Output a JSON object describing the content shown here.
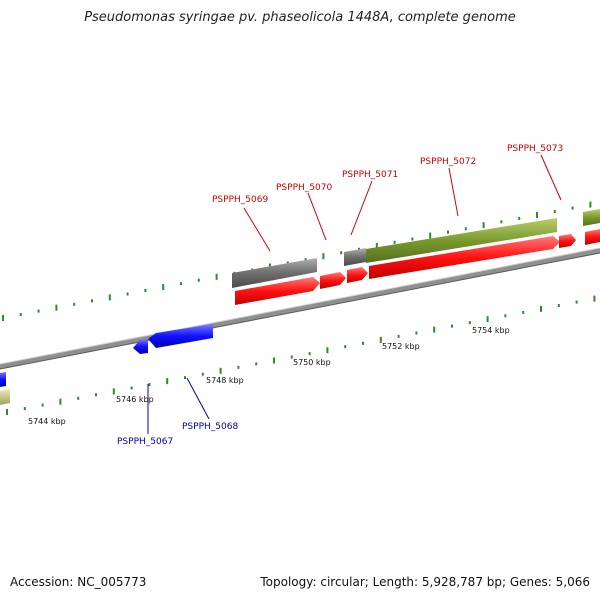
{
  "title": "Pseudomonas syringae pv. phaseolicola 1448A, complete genome",
  "footer": {
    "accession": "Accession: NC_005773",
    "topology": "Topology: circular; Length: 5,928,787 bp; Genes: 5,066"
  },
  "colors": {
    "backbone": "#8a8a8a",
    "forward_cds": "#ff1a1a",
    "reverse_cds": "#1a1aff",
    "forward_other": "#7a9a2e",
    "gray_feature": "#6e6e6e",
    "reverse_other": "#c8c88a",
    "tick": "#2f8a2f",
    "forward_label": "#cc0000",
    "reverse_label": "#0000aa"
  },
  "scale_labels": [
    "5744 kbp",
    "5746 kbp",
    "5748 kbp",
    "5750 kbp",
    "5752 kbp",
    "5754 kbp"
  ],
  "gene_labels": {
    "forward": [
      "PSPPH_5069",
      "PSPPH_5070",
      "PSPPH_5071",
      "PSPPH_5072",
      "PSPPH_5073"
    ],
    "reverse": [
      "PSPPH_5067",
      "PSPPH_5068"
    ]
  }
}
